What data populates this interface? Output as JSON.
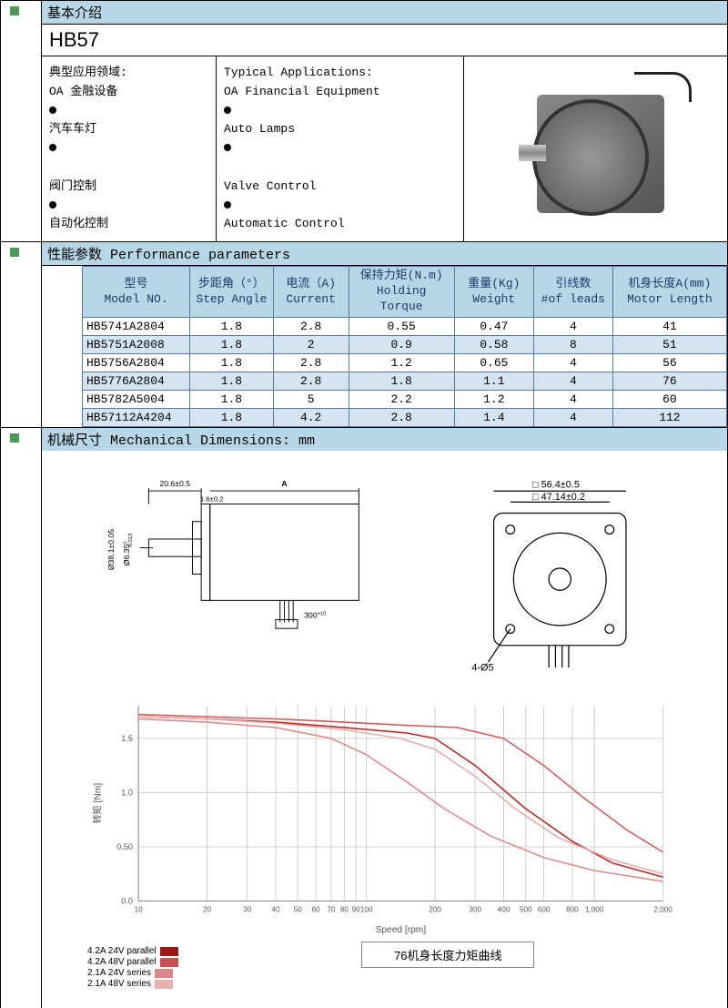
{
  "intro": {
    "header_cn": "基本介绍",
    "model": "HB57",
    "apps_cn": {
      "title": "典型应用领域:",
      "items": [
        "OA 金融设备",
        "汽车车灯",
        "阀门控制",
        "自动化控制"
      ]
    },
    "apps_en": {
      "title": "Typical Applications:",
      "items": [
        "OA Financial Equipment",
        "Auto Lamps",
        "Valve Control",
        "Automatic Control"
      ]
    }
  },
  "perf": {
    "header": "性能参数        Performance parameters",
    "columns": [
      {
        "cn": "型号",
        "en": "Model NO."
      },
      {
        "cn": "步距角（°）",
        "en": "Step Angle"
      },
      {
        "cn": "电流（A)",
        "en": "Current"
      },
      {
        "cn": "保持力矩(N.m)",
        "en": "Holding Torque"
      },
      {
        "cn": "重量(Kg)",
        "en": "Weight"
      },
      {
        "cn": "引线数",
        "en": "#of leads"
      },
      {
        "cn": "机身长度A(mm)",
        "en": "Motor Length"
      }
    ],
    "rows": [
      [
        "HB5741A2804",
        "1.8",
        "2.8",
        "0.55",
        "0.47",
        "4",
        "41"
      ],
      [
        "HB5751A2008",
        "1.8",
        "2",
        "0.9",
        "0.58",
        "8",
        "51"
      ],
      [
        "HB5756A2804",
        "1.8",
        "2.8",
        "1.2",
        "0.65",
        "4",
        "56"
      ],
      [
        "HB5776A2804",
        "1.8",
        "2.8",
        "1.8",
        "1.1",
        "4",
        "76"
      ],
      [
        "HB5782A5004",
        "1.8",
        "5",
        "2.2",
        "1.2",
        "4",
        "60"
      ],
      [
        "HB57112A4204",
        "1.8",
        "4.2",
        "2.8",
        "1.4",
        "4",
        "112"
      ]
    ],
    "col_widths": [
      "110",
      "85",
      "75",
      "110",
      "80",
      "80",
      "120"
    ]
  },
  "mech": {
    "header": "机械尺寸        Mechanical Dimensions: mm",
    "side": {
      "labels": {
        "shaft_len": "20.6±0.5",
        "A": "A",
        "flange": "1.6±0.2",
        "shaft_dia": "Ø6.35",
        "pilot": "Ø38.1±0.05",
        "wire": "300",
        "wire_tol": "+10\n0"
      }
    },
    "front": {
      "labels": {
        "outer": "□ 56.4±0.5",
        "bolt": "□ 47.14±0.2",
        "holes": "4-Ø5"
      }
    },
    "chart": {
      "type": "line",
      "title": "76机身长度力矩曲线",
      "xlabel": "Speed [rpm]",
      "ylabel": "转矩 [Nm]",
      "xscale": "log",
      "xticks": [
        10,
        20,
        30,
        40,
        50,
        60,
        70,
        80,
        90,
        100,
        200,
        300,
        400,
        500,
        600,
        800,
        1000,
        2000
      ],
      "xtick_labels": [
        "10",
        "20",
        "30",
        "40",
        "50",
        "60",
        "70",
        "80",
        "90",
        "100",
        "200",
        "300",
        "400",
        "500",
        "600",
        "800",
        "1,000",
        "2,000"
      ],
      "yticks": [
        0,
        0.5,
        1.0,
        1.5
      ],
      "ylim": [
        0,
        1.8
      ],
      "grid_color": "#d0d0d0",
      "series": [
        {
          "name": "4.2A 24V parallel",
          "color": "#c41e1e",
          "width": 1.5,
          "x": [
            10,
            20,
            40,
            80,
            150,
            200,
            300,
            500,
            800,
            1200,
            2000
          ],
          "y": [
            1.7,
            1.68,
            1.65,
            1.6,
            1.55,
            1.5,
            1.25,
            0.85,
            0.55,
            0.35,
            0.22
          ]
        },
        {
          "name": "4.2A 48V parallel",
          "color": "#d85555",
          "width": 1.5,
          "x": [
            10,
            20,
            40,
            80,
            150,
            250,
            400,
            600,
            900,
            1400,
            2000
          ],
          "y": [
            1.72,
            1.7,
            1.68,
            1.65,
            1.62,
            1.6,
            1.5,
            1.25,
            0.95,
            0.65,
            0.45
          ]
        },
        {
          "name": "2.1A 24V series",
          "color": "#e08888",
          "width": 1.5,
          "x": [
            10,
            20,
            40,
            70,
            100,
            150,
            220,
            350,
            600,
            1000,
            2000
          ],
          "y": [
            1.68,
            1.65,
            1.6,
            1.5,
            1.35,
            1.1,
            0.85,
            0.6,
            0.4,
            0.28,
            0.18
          ]
        },
        {
          "name": "2.1A 48V series",
          "color": "#e8aaaa",
          "width": 1.5,
          "x": [
            10,
            20,
            40,
            80,
            140,
            200,
            300,
            450,
            700,
            1200,
            2000
          ],
          "y": [
            1.7,
            1.68,
            1.64,
            1.58,
            1.5,
            1.4,
            1.15,
            0.85,
            0.58,
            0.38,
            0.25
          ]
        }
      ],
      "legend_colors": [
        "#9c1818",
        "#c85050",
        "#d88888",
        "#e8b0b0"
      ]
    }
  }
}
